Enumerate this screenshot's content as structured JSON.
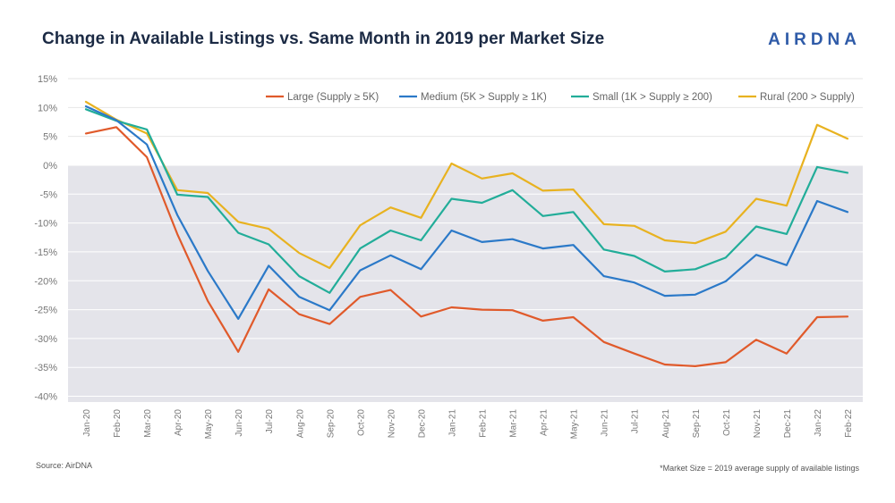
{
  "header": {
    "title": "Change in Available Listings vs. Same Month in 2019 per Market Size",
    "logo": "AIRDNA"
  },
  "footer": {
    "source": "Source: AirDNA",
    "footnote": "*Market Size = 2019 average supply of available listings"
  },
  "chart_data": {
    "type": "line",
    "title": "Change in Available Listings vs. Same Month in 2019 per Market Size",
    "xlabel": "",
    "ylabel": "",
    "ylim": [
      -41,
      15
    ],
    "yticks": [
      15,
      10,
      5,
      0,
      -5,
      -10,
      -15,
      -20,
      -25,
      -30,
      -35,
      -40
    ],
    "ytick_labels": [
      "15%",
      "10%",
      "5%",
      "0%",
      "-5%",
      "-10%",
      "-15%",
      "-20%",
      "-25%",
      "-30%",
      "-35%",
      "-40%"
    ],
    "negative_region_color": "#e4e4ea",
    "legend_position": "top-right",
    "grid": true,
    "categories": [
      "Jan-20",
      "Feb-20",
      "Mar-20",
      "Apr-20",
      "May-20",
      "Jun-20",
      "Jul-20",
      "Aug-20",
      "Sep-20",
      "Oct-20",
      "Nov-20",
      "Dec-20",
      "Jan-21",
      "Feb-21",
      "Mar-21",
      "Apr-21",
      "May-21",
      "Jun-21",
      "Jul-21",
      "Aug-21",
      "Sep-21",
      "Oct-21",
      "Nov-21",
      "Dec-21",
      "Jan-22",
      "Feb-22"
    ],
    "series": [
      {
        "name": "Large (Supply ≥ 5K)",
        "color": "#e05a2b",
        "values": [
          5.5,
          6.6,
          1.4,
          -11.9,
          -23.5,
          -32.3,
          -21.5,
          -25.8,
          -27.5,
          -22.8,
          -21.6,
          -26.2,
          -24.6,
          -25.0,
          -25.1,
          -26.9,
          -26.3,
          -30.6,
          -32.6,
          -34.5,
          -34.8,
          -34.1,
          -30.2,
          -32.6,
          -26.3,
          -26.2
        ]
      },
      {
        "name": "Medium (5K > Supply ≥ 1K)",
        "color": "#2b79c8",
        "values": [
          10.2,
          7.8,
          3.6,
          -8.6,
          -18.3,
          -26.6,
          -17.4,
          -22.8,
          -25.1,
          -18.2,
          -15.6,
          -18.0,
          -11.3,
          -13.3,
          -12.8,
          -14.4,
          -13.8,
          -19.2,
          -20.3,
          -22.6,
          -22.4,
          -20.1,
          -15.5,
          -17.3,
          -6.2,
          -8.1
        ]
      },
      {
        "name": "Small (1K > Supply ≥ 200)",
        "color": "#22ad99",
        "values": [
          9.7,
          7.7,
          6.2,
          -5.1,
          -5.5,
          -11.7,
          -13.7,
          -19.2,
          -22.1,
          -14.4,
          -11.3,
          -13.0,
          -5.8,
          -6.5,
          -4.3,
          -8.8,
          -8.1,
          -14.6,
          -15.7,
          -18.4,
          -18.0,
          -16.0,
          -10.6,
          -11.9,
          -0.3,
          -1.3
        ]
      },
      {
        "name": "Rural (200 > Supply)",
        "color": "#e8b220",
        "values": [
          11.0,
          7.9,
          5.5,
          -4.3,
          -4.8,
          -9.8,
          -11.0,
          -15.2,
          -17.8,
          -10.4,
          -7.3,
          -9.1,
          0.3,
          -2.3,
          -1.4,
          -4.4,
          -4.2,
          -10.2,
          -10.5,
          -13.0,
          -13.5,
          -11.5,
          -5.8,
          -7.0,
          7.0,
          4.6
        ]
      }
    ]
  }
}
